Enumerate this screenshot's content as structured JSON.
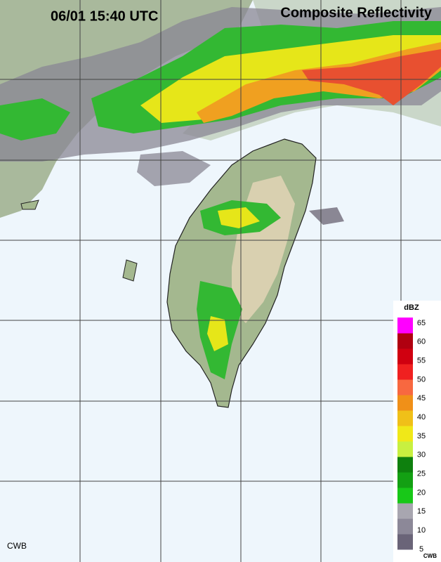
{
  "header": {
    "time": "06/01 15:40 UTC",
    "product": "Composite Reflectivity"
  },
  "legend": {
    "unit": "dBZ",
    "ticks": [
      65,
      60,
      55,
      50,
      45,
      40,
      35,
      30,
      25,
      20,
      15,
      10,
      5
    ],
    "credit": "CWB"
  },
  "footer": {
    "credit": "CWB"
  }
}
